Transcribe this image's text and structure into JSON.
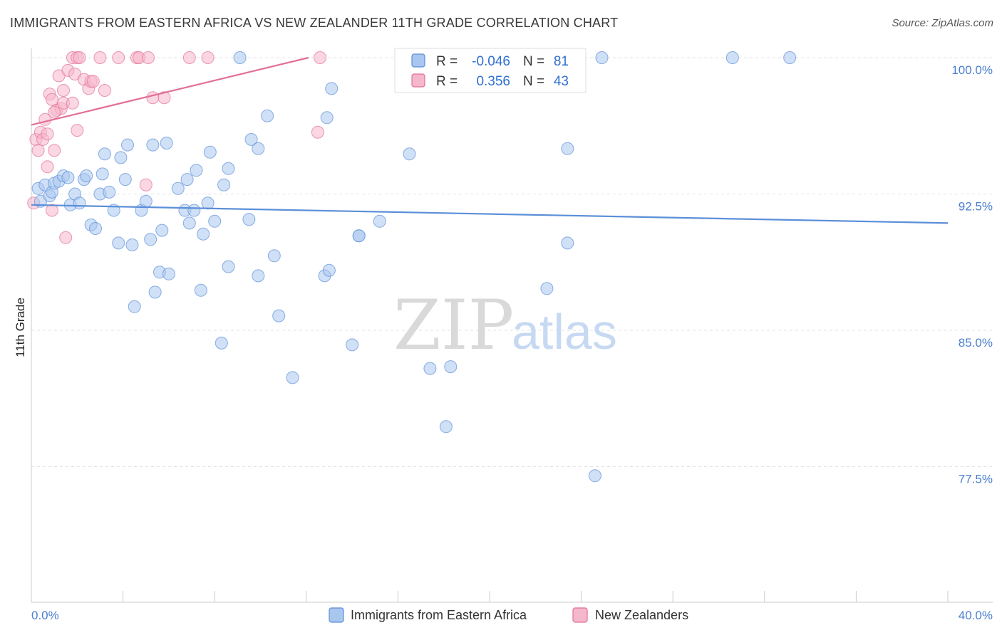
{
  "title": "IMMIGRANTS FROM EASTERN AFRICA VS NEW ZEALANDER 11TH GRADE CORRELATION CHART",
  "source": "Source: ZipAtlas.com",
  "watermark": {
    "zip": "ZIP",
    "atlas": "atlas"
  },
  "colors": {
    "blue": "#5b8fd9",
    "blue_fill": "#a9c6ee",
    "pink": "#e36f96",
    "pink_fill": "#f5b7cb",
    "tick_text": "#4a7fd0",
    "grid": "#e2e2e2"
  },
  "legend_box": {
    "rows": [
      {
        "r_label": "R =",
        "r_value": "-0.046",
        "n_label": "N =",
        "n_value": "81"
      },
      {
        "r_label": "R =",
        "r_value": "0.356",
        "n_label": "N =",
        "n_value": "43"
      }
    ]
  },
  "chart_data": {
    "type": "scatter",
    "ylabel": "11th Grade",
    "xlabel": "",
    "xlim": [
      0,
      40
    ],
    "ylim": [
      71.5,
      101.5
    ],
    "x_tick_labels": [
      {
        "value": 0,
        "label": "0.0%"
      },
      {
        "value": 40,
        "label": "40.0%"
      }
    ],
    "y_ticks": [
      {
        "value": 100,
        "label": "100.0%"
      },
      {
        "value": 92.5,
        "label": "92.5%"
      },
      {
        "value": 85,
        "label": "85.0%"
      },
      {
        "value": 77.5,
        "label": "77.5%"
      }
    ],
    "grid": true,
    "legend_position": "top-center",
    "series": [
      {
        "name": "Immigrants from Eastern Africa",
        "color": "#5b8fd9",
        "trend": {
          "x": [
            0,
            40
          ],
          "y": [
            91.9,
            90.9
          ]
        },
        "points": [
          [
            0.3,
            92.8
          ],
          [
            0.4,
            92.1
          ],
          [
            0.6,
            93.0
          ],
          [
            0.8,
            92.4
          ],
          [
            0.9,
            92.6
          ],
          [
            1.0,
            93.1
          ],
          [
            1.2,
            93.2
          ],
          [
            1.4,
            93.5
          ],
          [
            1.6,
            93.4
          ],
          [
            1.7,
            91.9
          ],
          [
            1.9,
            92.5
          ],
          [
            2.1,
            92.0
          ],
          [
            2.3,
            93.3
          ],
          [
            2.4,
            93.5
          ],
          [
            2.6,
            90.8
          ],
          [
            2.8,
            90.6
          ],
          [
            3.0,
            92.5
          ],
          [
            3.1,
            93.6
          ],
          [
            3.2,
            94.7
          ],
          [
            3.4,
            92.6
          ],
          [
            3.6,
            91.6
          ],
          [
            3.8,
            89.8
          ],
          [
            3.9,
            94.5
          ],
          [
            4.1,
            93.3
          ],
          [
            4.2,
            95.2
          ],
          [
            4.4,
            89.7
          ],
          [
            4.5,
            86.3
          ],
          [
            4.8,
            91.6
          ],
          [
            5.0,
            92.1
          ],
          [
            5.2,
            90.0
          ],
          [
            5.3,
            95.2
          ],
          [
            5.4,
            87.1
          ],
          [
            5.6,
            88.2
          ],
          [
            5.7,
            90.5
          ],
          [
            5.9,
            95.3
          ],
          [
            6.0,
            88.1
          ],
          [
            6.4,
            92.8
          ],
          [
            6.7,
            91.6
          ],
          [
            6.8,
            93.3
          ],
          [
            6.9,
            90.9
          ],
          [
            7.1,
            91.6
          ],
          [
            7.2,
            93.8
          ],
          [
            7.4,
            87.2
          ],
          [
            7.5,
            90.3
          ],
          [
            7.7,
            92.0
          ],
          [
            7.8,
            94.8
          ],
          [
            8.0,
            91.0
          ],
          [
            8.3,
            84.3
          ],
          [
            8.4,
            93.0
          ],
          [
            8.6,
            88.5
          ],
          [
            8.6,
            93.9
          ],
          [
            9.1,
            100.0
          ],
          [
            9.5,
            91.1
          ],
          [
            9.6,
            95.5
          ],
          [
            9.9,
            95.0
          ],
          [
            9.9,
            88.0
          ],
          [
            10.3,
            96.8
          ],
          [
            10.6,
            89.1
          ],
          [
            10.8,
            85.8
          ],
          [
            11.4,
            82.4
          ],
          [
            12.8,
            88.0
          ],
          [
            12.9,
            96.7
          ],
          [
            13.0,
            88.3
          ],
          [
            13.1,
            98.3
          ],
          [
            14.0,
            84.2
          ],
          [
            14.3,
            90.2
          ],
          [
            14.3,
            90.2
          ],
          [
            15.2,
            91.0
          ],
          [
            16.5,
            94.7
          ],
          [
            17.4,
            82.9
          ],
          [
            17.8,
            100.0
          ],
          [
            18.1,
            79.7
          ],
          [
            18.3,
            83.0
          ],
          [
            22.5,
            87.3
          ],
          [
            23.4,
            89.8
          ],
          [
            23.4,
            95.0
          ],
          [
            24.6,
            77.0
          ],
          [
            24.9,
            100.0
          ],
          [
            30.6,
            100.0
          ],
          [
            33.1,
            100.0
          ],
          [
            17.6,
            100.0
          ]
        ]
      },
      {
        "name": "New Zealanders",
        "color": "#e36f96",
        "trend": {
          "x": [
            0,
            12.1
          ],
          "y": [
            96.3,
            100.0
          ]
        },
        "points": [
          [
            0.1,
            92.0
          ],
          [
            0.2,
            95.5
          ],
          [
            0.3,
            94.9
          ],
          [
            0.4,
            95.9
          ],
          [
            0.5,
            95.5
          ],
          [
            0.6,
            96.6
          ],
          [
            0.7,
            95.8
          ],
          [
            0.7,
            94.0
          ],
          [
            0.8,
            98.0
          ],
          [
            0.9,
            97.7
          ],
          [
            0.9,
            91.6
          ],
          [
            1.0,
            94.9
          ],
          [
            1.1,
            97.1
          ],
          [
            1.2,
            99.0
          ],
          [
            1.3,
            97.2
          ],
          [
            1.4,
            98.2
          ],
          [
            1.4,
            97.5
          ],
          [
            1.5,
            90.1
          ],
          [
            1.6,
            99.3
          ],
          [
            1.8,
            97.5
          ],
          [
            1.9,
            99.1
          ],
          [
            2.0,
            96.0
          ],
          [
            1.8,
            100.0
          ],
          [
            2.0,
            100.0
          ],
          [
            2.1,
            100.0
          ],
          [
            2.3,
            98.8
          ],
          [
            2.5,
            98.3
          ],
          [
            2.6,
            98.7
          ],
          [
            2.7,
            98.7
          ],
          [
            3.0,
            100.0
          ],
          [
            3.2,
            98.2
          ],
          [
            3.8,
            100.0
          ],
          [
            4.6,
            100.0
          ],
          [
            4.7,
            100.0
          ],
          [
            5.0,
            93.0
          ],
          [
            5.1,
            100.0
          ],
          [
            5.3,
            97.8
          ],
          [
            5.8,
            97.8
          ],
          [
            6.9,
            100.0
          ],
          [
            7.7,
            100.0
          ],
          [
            12.5,
            95.9
          ],
          [
            12.6,
            100.0
          ],
          [
            1.0,
            97.0
          ]
        ]
      }
    ]
  }
}
